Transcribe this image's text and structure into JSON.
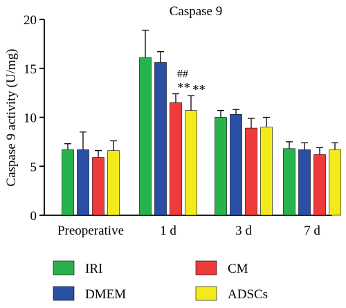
{
  "chart_data": {
    "type": "bar",
    "title": "Caspase 9",
    "ylabel": "Caspase 9 activity (U/mg)",
    "xlabel": "",
    "ylim": [
      0,
      20
    ],
    "yticks": [
      0,
      5,
      10,
      15,
      20
    ],
    "categories": [
      "Preoperative",
      "1 d",
      "3 d",
      "7 d"
    ],
    "series": [
      {
        "name": "IRI",
        "color": "#27b34b",
        "values": [
          6.7,
          16.1,
          10.0,
          6.8
        ],
        "errors": [
          0.6,
          2.8,
          0.7,
          0.7
        ]
      },
      {
        "name": "DMEM",
        "color": "#2b4ea6",
        "values": [
          6.7,
          15.6,
          10.3,
          6.7
        ],
        "errors": [
          1.8,
          1.1,
          0.5,
          0.7
        ]
      },
      {
        "name": "CM",
        "color": "#ee3a3a",
        "values": [
          5.9,
          11.5,
          8.9,
          6.2
        ],
        "errors": [
          0.7,
          0.9,
          1.0,
          0.7
        ]
      },
      {
        "name": "ADSCs",
        "color": "#f2ea1a",
        "values": [
          6.6,
          10.7,
          9.0,
          6.7
        ],
        "errors": [
          1.0,
          1.5,
          1.0,
          0.7
        ]
      }
    ],
    "annotations": [
      {
        "text": "##",
        "category": "1 d",
        "series": "CM"
      },
      {
        "text": "**",
        "category": "1 d",
        "series": "CM"
      },
      {
        "text": "**",
        "category": "1 d",
        "series": "ADSCs"
      }
    ],
    "legend": {
      "placement": "bottom",
      "columns": 2
    },
    "grid": false
  }
}
